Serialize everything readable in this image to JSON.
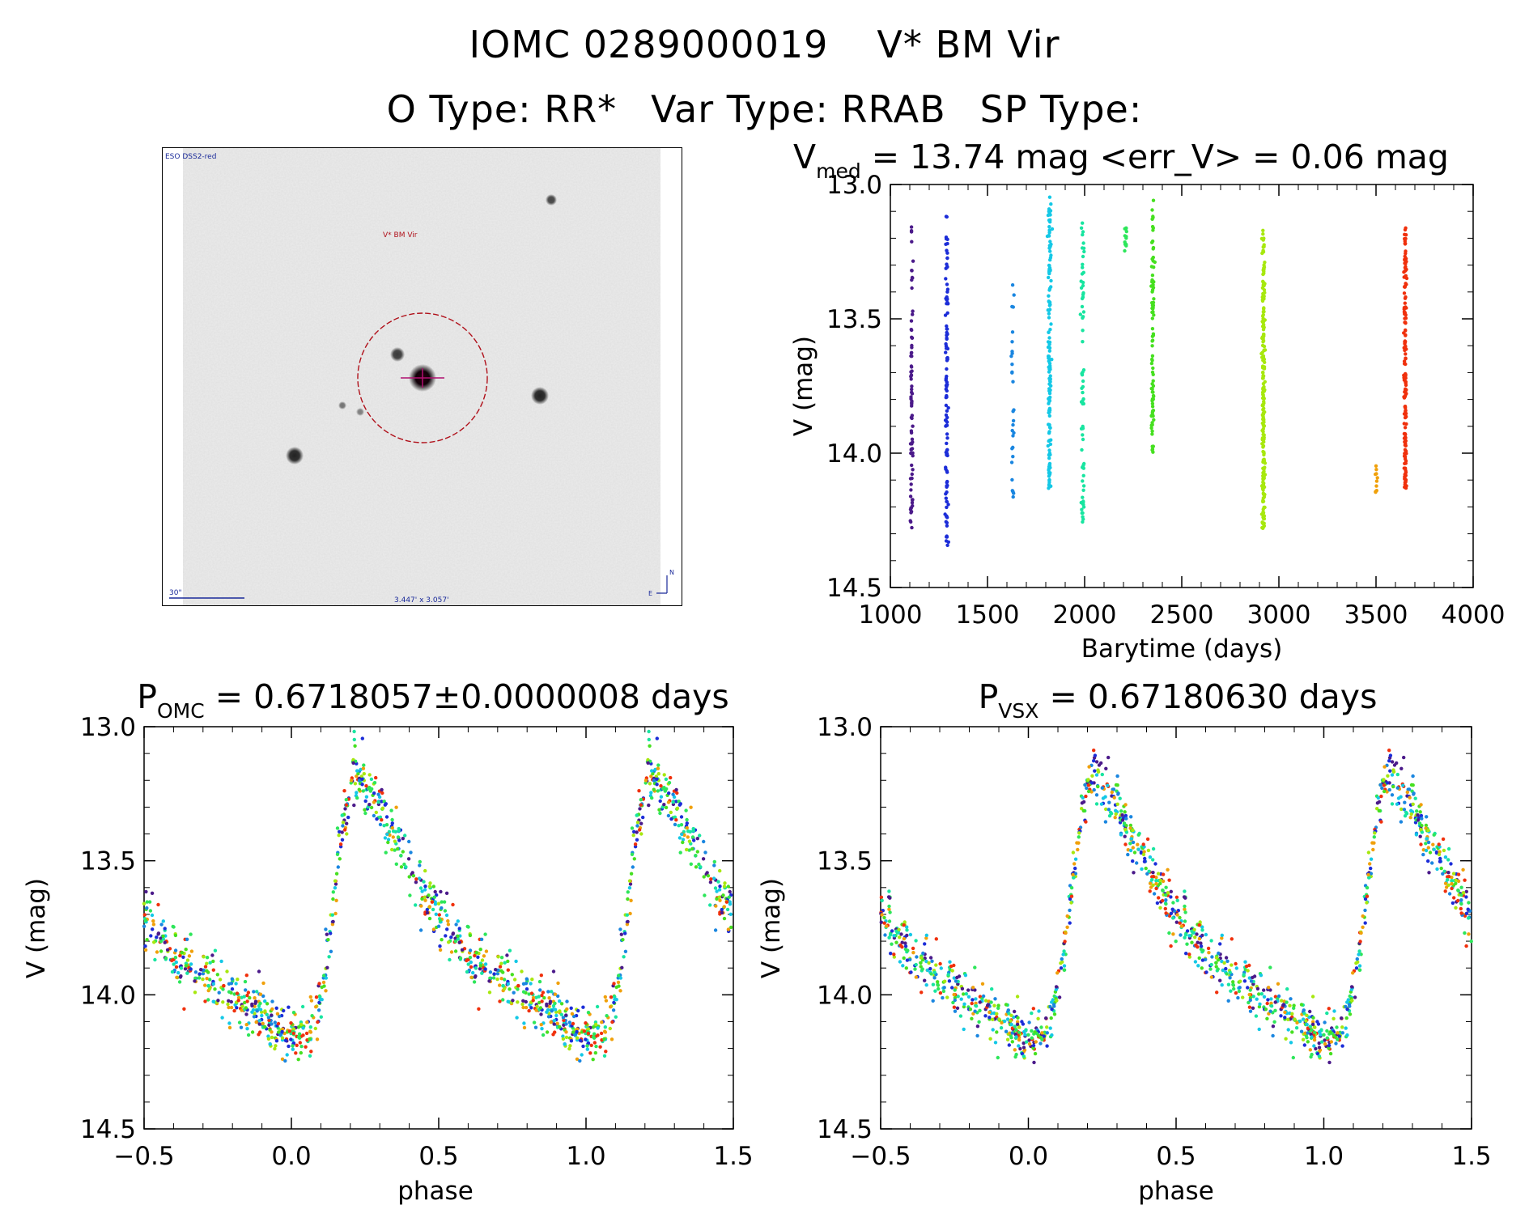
{
  "header": {
    "star_id": "IOMC 0289000019",
    "star_name": "V* BM Vir",
    "o_type": "O Type: RR*",
    "var_type": "Var Type: RRAB",
    "sp_type": "SP Type:"
  },
  "finder_chart": {
    "survey_label": "ESO DSS2-red",
    "target_label": "V* BM Vir",
    "scale_label": "30\"",
    "fov_label": "3.447' x 3.057'",
    "north_label": "N",
    "east_label": "E"
  },
  "chart_data": [
    {
      "type": "scatter",
      "id": "lightcurve",
      "title_main": "V",
      "title_sub": "med",
      "title_rest": " = 13.74 mag <err_V> = 0.06 mag",
      "xlabel": "Barytime (days)",
      "ylabel": "V (mag)",
      "xlim": [
        1000,
        4000
      ],
      "ylim": [
        14.5,
        13.0
      ],
      "x_ticks": [
        "1000",
        "1500",
        "2000",
        "2500",
        "3000",
        "3500",
        "4000"
      ],
      "y_ticks": [
        "13.0",
        "13.5",
        "14.0",
        "14.5"
      ],
      "median_V": 13.74,
      "mean_err_V": 0.06,
      "series": [
        {
          "name": "epoch 1",
          "x_center": 1110,
          "mag_range": [
            13.12,
            14.28
          ],
          "n": 80,
          "color": "#4b1a8a"
        },
        {
          "name": "epoch 2",
          "x_center": 1290,
          "mag_range": [
            13.1,
            14.35
          ],
          "n": 110,
          "color": "#1c2dd8"
        },
        {
          "name": "epoch 3",
          "x_center": 1630,
          "mag_range": [
            13.06,
            14.18
          ],
          "n": 30,
          "color": "#1a86e0"
        },
        {
          "name": "epoch 4",
          "x_center": 1820,
          "mag_range": [
            13.04,
            14.15
          ],
          "n": 150,
          "color": "#14c8e6"
        },
        {
          "name": "epoch 5",
          "x_center": 1990,
          "mag_range": [
            13.12,
            14.26
          ],
          "n": 70,
          "color": "#18e5a0"
        },
        {
          "name": "epoch 6",
          "x_center": 2210,
          "mag_range": [
            13.15,
            13.25
          ],
          "n": 12,
          "color": "#2de65a"
        },
        {
          "name": "epoch 7",
          "x_center": 2350,
          "mag_range": [
            13.05,
            14.0
          ],
          "n": 90,
          "color": "#46e020"
        },
        {
          "name": "epoch 8",
          "x_center": 2920,
          "mag_range": [
            13.17,
            14.28
          ],
          "n": 220,
          "color": "#a7e80e"
        },
        {
          "name": "epoch 9",
          "x_center": 3500,
          "mag_range": [
            13.97,
            14.15
          ],
          "n": 10,
          "color": "#f0a00a"
        },
        {
          "name": "epoch 10",
          "x_center": 3650,
          "mag_range": [
            13.15,
            14.13
          ],
          "n": 160,
          "color": "#f0300c"
        }
      ]
    },
    {
      "type": "scatter",
      "id": "phase_omc",
      "title_main": "P",
      "title_sub": "OMC",
      "title_rest": " = 0.6718057±0.0000008 days",
      "period_days": 0.6718057,
      "period_err_days": 8e-07,
      "xlabel": "phase",
      "ylabel": "V (mag)",
      "xlim": [
        -0.5,
        1.5
      ],
      "ylim": [
        14.5,
        13.0
      ],
      "x_ticks": [
        "−0.5",
        "0.0",
        "0.5",
        "1.0",
        "1.5"
      ],
      "y_ticks": [
        "13.0",
        "13.5",
        "14.0",
        "14.5"
      ],
      "curve": {
        "phase": [
          0.0,
          0.08,
          0.12,
          0.17,
          0.21,
          0.3,
          0.45,
          0.6,
          0.75,
          0.9,
          1.0
        ],
        "mag": [
          14.17,
          14.12,
          13.85,
          13.4,
          13.15,
          13.3,
          13.62,
          13.85,
          13.98,
          14.08,
          14.17
        ]
      }
    },
    {
      "type": "scatter",
      "id": "phase_vsx",
      "title_main": "P",
      "title_sub": "VSX",
      "title_rest": " = 0.67180630 days",
      "period_days": 0.6718063,
      "xlabel": "phase",
      "ylabel": "V (mag)",
      "xlim": [
        -0.5,
        1.5
      ],
      "ylim": [
        14.5,
        13.0
      ],
      "x_ticks": [
        "−0.5",
        "0.0",
        "0.5",
        "1.0",
        "1.5"
      ],
      "y_ticks": [
        "13.0",
        "13.5",
        "14.0",
        "14.5"
      ],
      "curve": {
        "phase": [
          0.0,
          0.08,
          0.12,
          0.17,
          0.21,
          0.3,
          0.45,
          0.6,
          0.75,
          0.9,
          1.0
        ],
        "mag": [
          14.17,
          14.12,
          13.85,
          13.4,
          13.15,
          13.3,
          13.62,
          13.85,
          13.98,
          14.08,
          14.17
        ]
      }
    }
  ]
}
